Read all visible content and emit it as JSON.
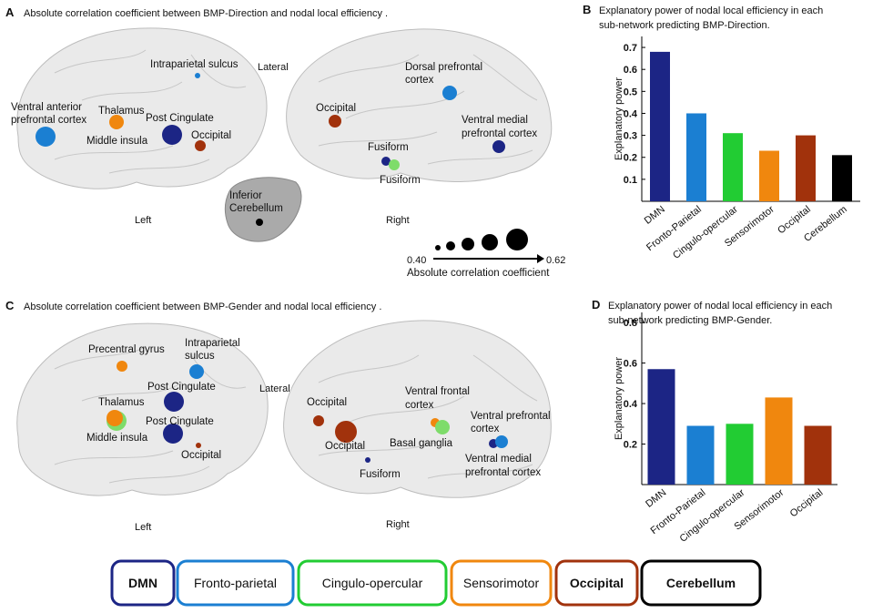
{
  "panel_a": {
    "letter": "A",
    "title": "Absolute correlation coefficient between BMP-Direction and nodal local efficiency .",
    "left": "Left",
    "right": "Right",
    "lateral": "Lateral",
    "nodes": [
      [
        "Intraparietal  sulcus"
      ],
      [
        "Ventral anterior",
        "prefrontal cortex"
      ],
      [
        "Thalamus"
      ],
      [
        "Post Cingulate"
      ],
      [
        "Middle insula"
      ],
      [
        "Occipital"
      ],
      [
        "Dorsal prefrontal",
        "cortex"
      ],
      [
        "Occipital"
      ],
      [
        "Ventral medial",
        "prefrontal cortex"
      ],
      [
        "Fusiform"
      ],
      [
        "Fusiform"
      ],
      [
        "Inferior",
        "Cerebellum"
      ]
    ],
    "size_legend": {
      "min": "0.40",
      "max": "0.62",
      "label": "Absolute correlation coefficient"
    }
  },
  "panel_c": {
    "letter": "C",
    "title": "Absolute correlation coefficient between BMP-Gender and nodal local efficiency .",
    "left": "Left",
    "right": "Right",
    "lateral": "Lateral",
    "nodes": [
      [
        "Precentral gyrus"
      ],
      [
        "Intraparietal",
        "sulcus"
      ],
      [
        "Post Cingulate"
      ],
      [
        "Thalamus"
      ],
      [
        "Post Cingulate"
      ],
      [
        "Middle insula"
      ],
      [
        "Occipital"
      ],
      [
        "Occipital"
      ],
      [
        "Occipital"
      ],
      [
        "Fusiform"
      ],
      [
        "Ventral frontal",
        "cortex"
      ],
      [
        "Basal ganglia"
      ],
      [
        "Ventral prefrontal",
        "cortex"
      ],
      [
        "Ventral medial",
        "prefrontal cortex"
      ]
    ]
  },
  "chart_data": [
    {
      "type": "bar",
      "panel": "B",
      "title": [
        "Explanatory power of nodal local efficiency in each",
        "sub-network predicting BMP-Direction."
      ],
      "y_label": "Explanatory power",
      "categories": [
        "DMN",
        "Fronto-Parietal",
        "Cingulo-opercular",
        "Sensorimotor",
        "Occipital",
        "Cerebellum"
      ],
      "values": [
        0.68,
        0.4,
        0.31,
        0.23,
        0.3,
        0.21
      ],
      "colors": [
        "#1c2585",
        "#1b7fd2",
        "#22cc33",
        "#f0870e",
        "#a1320c",
        "#000000"
      ],
      "ylim": [
        0,
        0.75
      ],
      "yticks": [
        0.1,
        0.2,
        0.3,
        0.4,
        0.5,
        0.6,
        0.7
      ]
    },
    {
      "type": "bar",
      "panel": "D",
      "title": [
        "Explanatory power of nodal local efficiency in each",
        "sub-network predicting BMP-Gender."
      ],
      "y_label": "Explanatory power",
      "categories": [
        "DMN",
        "Fronto-Parietal",
        "Cingulo-opercular",
        "Sensorimotor",
        "Occipital"
      ],
      "values": [
        0.57,
        0.29,
        0.3,
        0.43,
        0.29
      ],
      "colors": [
        "#1c2585",
        "#1b7fd2",
        "#22cc33",
        "#f0870e",
        "#a1320c"
      ],
      "ylim": [
        0,
        0.85
      ],
      "yticks": [
        0.2,
        0.4,
        0.6,
        0.8
      ]
    }
  ],
  "network_legend": [
    "DMN",
    "Fronto-parietal",
    "Cingulo-opercular",
    "Sensorimotor",
    "Occipital",
    "Cerebellum"
  ]
}
